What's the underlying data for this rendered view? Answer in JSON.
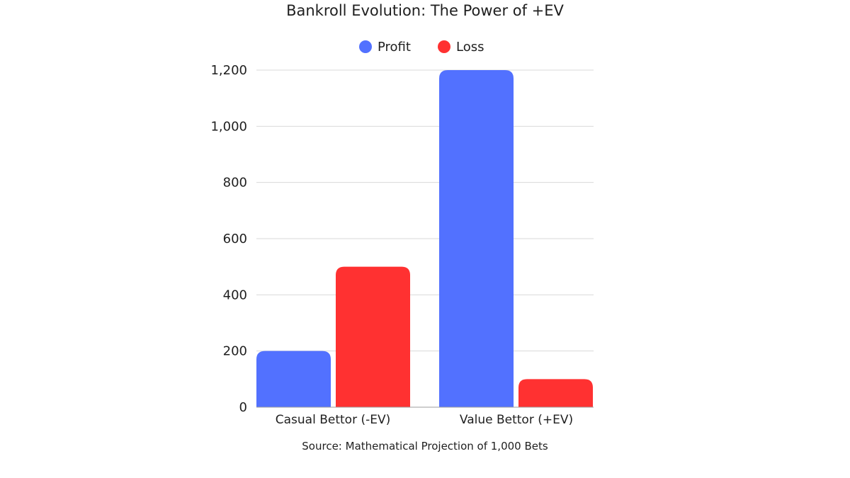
{
  "chart_data": {
    "type": "bar",
    "title": "Bankroll Evolution: The Power of +EV",
    "categories": [
      "Casual Bettor (-EV)",
      "Value Bettor (+EV)"
    ],
    "series": [
      {
        "name": "Profit",
        "values": [
          200,
          1200
        ],
        "color": "#5271ff"
      },
      {
        "name": "Loss",
        "values": [
          500,
          100
        ],
        "color": "#ff3131"
      }
    ],
    "ylim": [
      0,
      1200
    ],
    "yticks": [
      0,
      200,
      400,
      600,
      800,
      1000,
      1200
    ],
    "ytick_labels": [
      "0",
      "200",
      "400",
      "600",
      "800",
      "1,000",
      "1,200"
    ],
    "xlabel": "",
    "ylabel": "",
    "grid": true,
    "legend_position": "top-center",
    "source": "Source: Mathematical Projection of 1,000 Bets"
  }
}
